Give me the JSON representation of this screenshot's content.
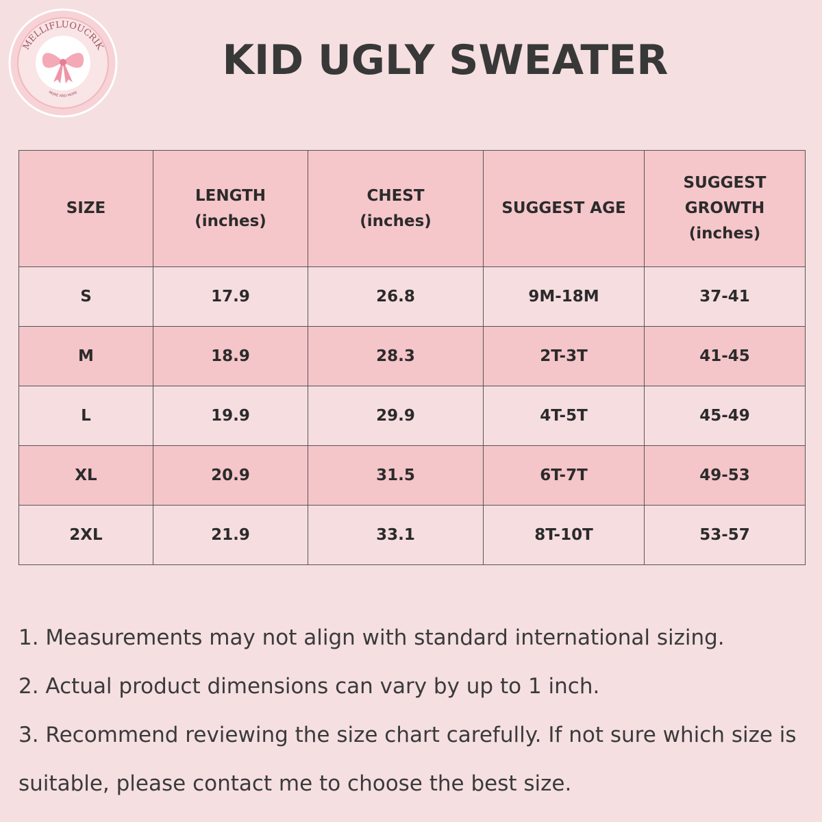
{
  "logo": {
    "brand": "MELLIFLUOUCRIK",
    "tagline": "MORE AND MORE"
  },
  "header": {
    "title": "KID UGLY SWEATER"
  },
  "table": {
    "columns": [
      [
        "SIZE"
      ],
      [
        "LENGTH",
        "(inches)"
      ],
      [
        "CHEST",
        "(inches)"
      ],
      [
        "SUGGEST AGE"
      ],
      [
        "SUGGEST",
        "GROWTH",
        "(inches)"
      ]
    ],
    "rows": [
      [
        "S",
        "17.9",
        "26.8",
        "9M-18M",
        "37-41"
      ],
      [
        "M",
        "18.9",
        "28.3",
        "2T-3T",
        "41-45"
      ],
      [
        "L",
        "19.9",
        "29.9",
        "4T-5T",
        "45-49"
      ],
      [
        "XL",
        "20.9",
        "31.5",
        "6T-7T",
        "49-53"
      ],
      [
        "2XL",
        "21.9",
        "33.1",
        "8T-10T",
        "53-57"
      ]
    ]
  },
  "notes": [
    "1. Measurements may not align with standard international sizing.",
    "2. Actual product dimensions can vary by up to 1 inch.",
    "3. Recommend reviewing the size chart carefully. If not sure which size is suitable, please contact me to choose the best size."
  ]
}
